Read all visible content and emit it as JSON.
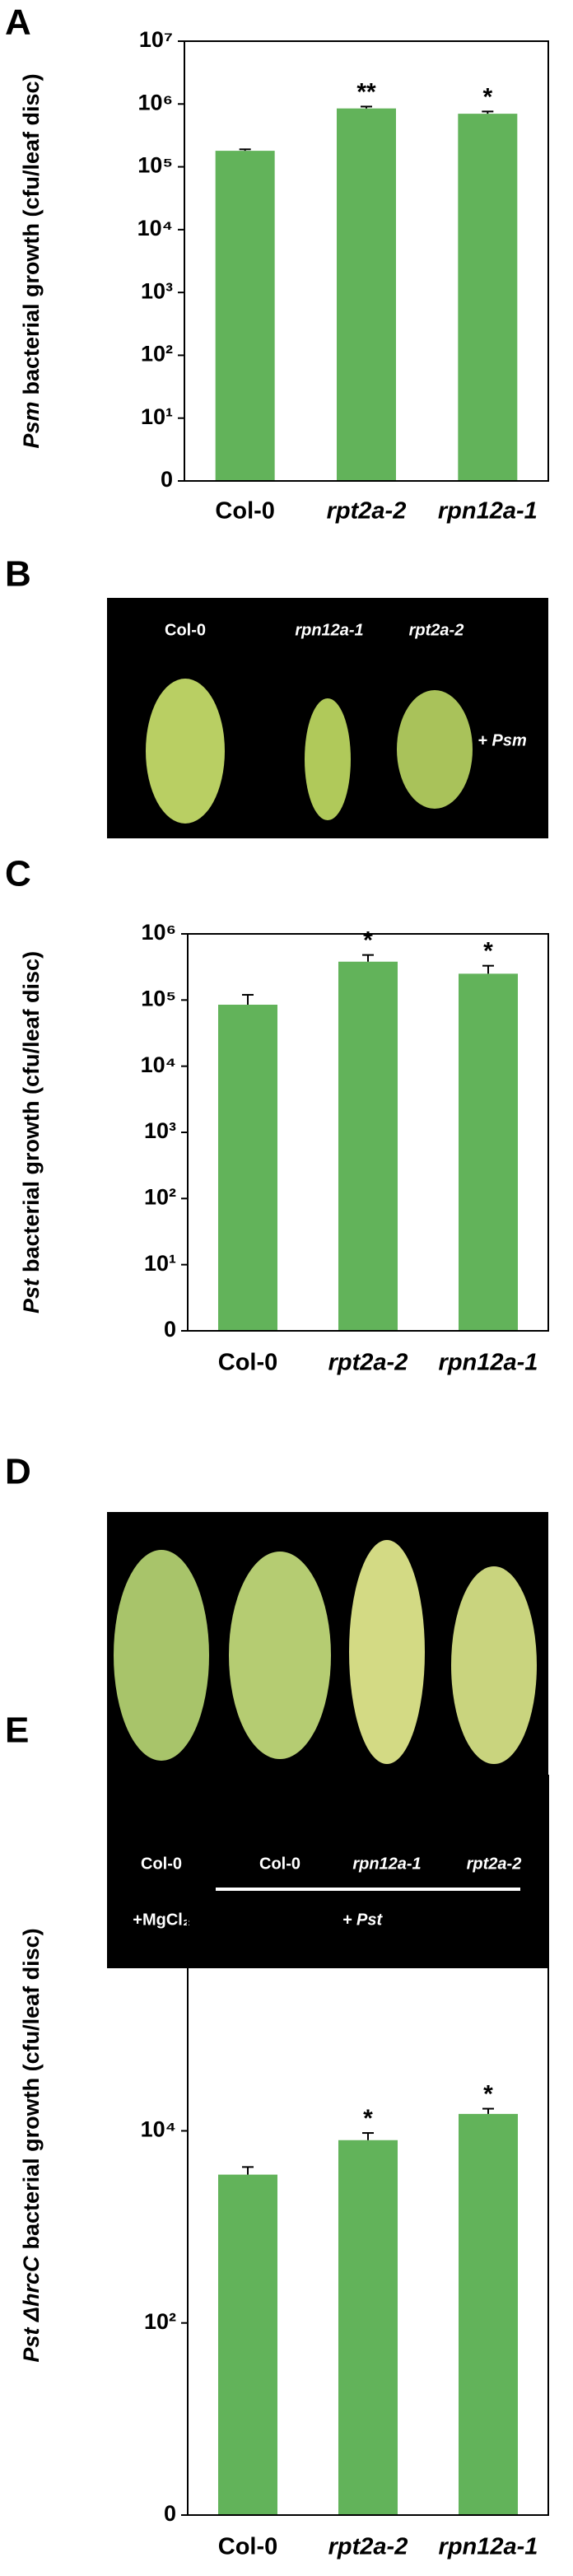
{
  "chart_data": [
    {
      "type": "bar",
      "panel_label": "A",
      "ylabel_italic": "Psm",
      "ylabel": "bacterial growth (cfu/leaf disc)",
      "categories": [
        "Col-0",
        "rpt2a-2",
        "rpn12a-1"
      ],
      "italic_categories": [
        false,
        true,
        true
      ],
      "values": [
        180000,
        850000,
        700000
      ],
      "errors": [
        10000,
        60000,
        60000
      ],
      "color": "#62b35a",
      "log_scale": true,
      "ylim": [
        1,
        10000000
      ],
      "yticks": [
        {
          "value": 1,
          "label": "0"
        },
        {
          "value": 10,
          "label": "10¹"
        },
        {
          "value": 100,
          "label": "10²"
        },
        {
          "value": 1000,
          "label": "10³"
        },
        {
          "value": 10000,
          "label": "10⁴"
        },
        {
          "value": 100000,
          "label": "10⁵"
        },
        {
          "value": 1000000,
          "label": "10⁶"
        },
        {
          "value": 10000000,
          "label": "10⁷"
        }
      ],
      "annotations": [
        {
          "category": "rpt2a-2",
          "text": "**"
        },
        {
          "category": "rpn12a-1",
          "text": "*"
        }
      ]
    },
    {
      "type": "bar",
      "panel_label": "C",
      "ylabel_italic": "Pst",
      "ylabel": "bacterial growth (cfu/leaf disc)",
      "categories": [
        "Col-0",
        "rpt2a-2",
        "rpn12a-1"
      ],
      "italic_categories": [
        false,
        true,
        true
      ],
      "values": [
        85000,
        380000,
        250000
      ],
      "errors": [
        35000,
        100000,
        80000
      ],
      "color": "#62b35a",
      "log_scale": true,
      "ylim": [
        1,
        1000000
      ],
      "yticks": [
        {
          "value": 1,
          "label": "0"
        },
        {
          "value": 10,
          "label": "10¹"
        },
        {
          "value": 100,
          "label": "10²"
        },
        {
          "value": 1000,
          "label": "10³"
        },
        {
          "value": 10000,
          "label": "10⁴"
        },
        {
          "value": 100000,
          "label": "10⁵"
        },
        {
          "value": 1000000,
          "label": "10⁶"
        }
      ],
      "annotations": [
        {
          "category": "rpt2a-2",
          "text": "*"
        },
        {
          "category": "rpn12a-1",
          "text": "*"
        }
      ]
    },
    {
      "type": "bar",
      "panel_label": "E",
      "ylabel_italic": "Pst ΔhrcC",
      "ylabel": "bacterial growth (cfu/leaf disc)",
      "categories": [
        "Col-0",
        "rpt2a-2",
        "rpn12a-1"
      ],
      "italic_categories": [
        false,
        true,
        true
      ],
      "values": [
        3500,
        8000,
        15000
      ],
      "errors": [
        700,
        1500,
        2000
      ],
      "color": "#62b35a",
      "log_scale": true,
      "ylim": [
        1,
        50000000
      ],
      "yticks": [
        {
          "value": 1,
          "label": "0"
        },
        {
          "value": 100,
          "label": "10²"
        },
        {
          "value": 10000,
          "label": "10⁴"
        }
      ],
      "annotations": [
        {
          "category": "rpt2a-2",
          "text": "*"
        },
        {
          "category": "rpn12a-1",
          "text": "*"
        }
      ]
    }
  ],
  "photo_b": {
    "panel_label": "B",
    "labels": [
      "Col-0",
      "rpn12a-1",
      "rpt2a-2"
    ],
    "treatment": "+ Psm"
  },
  "photo_d": {
    "panel_label": "D",
    "labels": [
      "Col-0",
      "Col-0",
      "rpn12a-1",
      "rpt2a-2"
    ],
    "control": "+MgCl₂",
    "treatment": "+ Pst"
  }
}
